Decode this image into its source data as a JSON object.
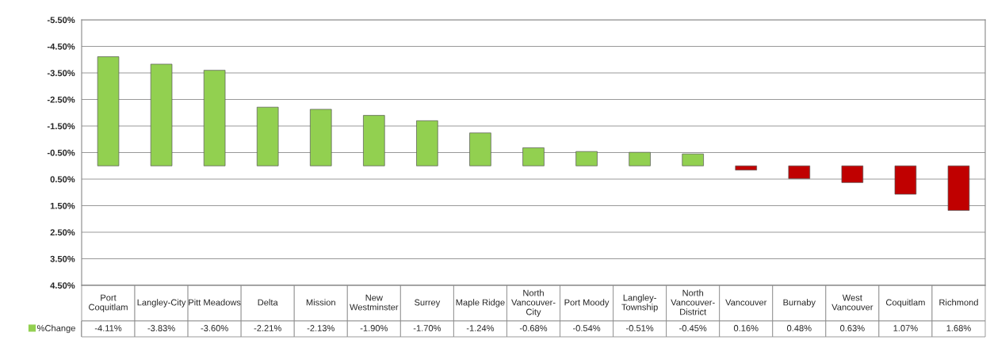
{
  "chart_data": {
    "type": "bar",
    "categories": [
      "Port Coquitlam",
      "Langley-City",
      "Pitt Meadows",
      "Delta",
      "Mission",
      "New Westminster",
      "Surrey",
      "Maple Ridge",
      "North Vancouver-City",
      "Port Moody",
      "Langley-Township",
      "North Vancouver-District",
      "Vancouver",
      "Burnaby",
      "West Vancouver",
      "Coquitlam",
      "Richmond"
    ],
    "series": [
      {
        "name": "%Change",
        "color": "#92d050",
        "colors": [
          "#92d050",
          "#92d050",
          "#92d050",
          "#92d050",
          "#92d050",
          "#92d050",
          "#92d050",
          "#92d050",
          "#92d050",
          "#92d050",
          "#92d050",
          "#92d050",
          "#c00000",
          "#c00000",
          "#c00000",
          "#c00000",
          "#c00000"
        ],
        "values": [
          -4.11,
          -3.83,
          -3.6,
          -2.21,
          -2.13,
          -1.9,
          -1.7,
          -1.24,
          -0.68,
          -0.54,
          -0.51,
          -0.45,
          0.16,
          0.48,
          0.63,
          1.07,
          1.68
        ],
        "value_labels": [
          "-4.11%",
          "-3.83%",
          "-3.60%",
          "-2.21%",
          "-2.13%",
          "-1.90%",
          "-1.70%",
          "-1.24%",
          "-0.68%",
          "-0.54%",
          "-0.51%",
          "-0.45%",
          "0.16%",
          "0.48%",
          "0.63%",
          "1.07%",
          "1.68%"
        ]
      }
    ],
    "ylim": [
      4.5,
      -5.5
    ],
    "yticks": [
      {
        "value": -5.5,
        "label": "-5.50%"
      },
      {
        "value": -4.5,
        "label": "-4.50%"
      },
      {
        "value": -3.5,
        "label": "-3.50%"
      },
      {
        "value": -2.5,
        "label": "-2.50%"
      },
      {
        "value": -1.5,
        "label": "-1.50%"
      },
      {
        "value": -0.5,
        "label": "-0.50%"
      },
      {
        "value": 0.5,
        "label": "0.50%"
      },
      {
        "value": 1.5,
        "label": "1.50%"
      },
      {
        "value": 2.5,
        "label": "2.50%"
      },
      {
        "value": 3.5,
        "label": "3.50%"
      },
      {
        "value": 4.5,
        "label": "4.50%"
      }
    ],
    "grid": "y",
    "legend": "bottom left"
  }
}
